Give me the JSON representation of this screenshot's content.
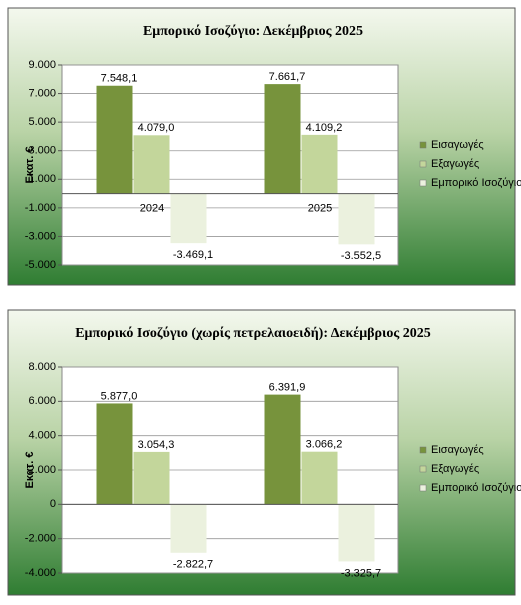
{
  "chart_data": [
    {
      "type": "bar",
      "title": "Εμπορικό Ισοζύγιο: Δεκέμβριος 2025",
      "y_label": "Εκατ. €",
      "categories": [
        "2024",
        "2025"
      ],
      "series": [
        {
          "name": "Εισαγωγές",
          "color": "#77933c",
          "values": [
            7548.1,
            7661.7
          ],
          "value_labels": [
            "7.548,1",
            "7.661,7"
          ]
        },
        {
          "name": "Εξαγωγές",
          "color": "#c3d69b",
          "values": [
            4079.0,
            4109.2
          ],
          "value_labels": [
            "4.079,0",
            "4.109,2"
          ]
        },
        {
          "name": "Εμπορικό Ισοζύγιο",
          "color": "#ebf1de",
          "values": [
            -3469.1,
            -3552.5
          ],
          "value_labels": [
            "-3.469,1",
            "-3.552,5"
          ]
        }
      ],
      "ylim": [
        -5000,
        9000
      ],
      "yticks": [
        {
          "value": 9000,
          "label": "9.000"
        },
        {
          "value": 7000,
          "label": "7.000"
        },
        {
          "value": 5000,
          "label": "5.000"
        },
        {
          "value": 3000,
          "label": "3.000"
        },
        {
          "value": 1000,
          "label": "1.000"
        },
        {
          "value": -1000,
          "label": "-1.000"
        },
        {
          "value": -3000,
          "label": "-3.000"
        },
        {
          "value": -5000,
          "label": "-5.000"
        }
      ],
      "grid": true,
      "legend": "right"
    },
    {
      "type": "bar",
      "title": "Εμπορικό Ισοζύγιο (χωρίς πετρελαιοειδή): Δεκέμβριος 2025",
      "y_label": "Εκατ. €",
      "categories": [
        null,
        null
      ],
      "series": [
        {
          "name": "Εισαγωγές",
          "color": "#77933c",
          "values": [
            5877.0,
            6391.9
          ],
          "value_labels": [
            "5.877,0",
            "6.391,9"
          ]
        },
        {
          "name": "Εξαγωγές",
          "color": "#c3d69b",
          "values": [
            3054.3,
            3066.2
          ],
          "value_labels": [
            "3.054,3",
            "3.066,2"
          ]
        },
        {
          "name": "Εμπορικό Ισοζύγιο",
          "color": "#ebf1de",
          "values": [
            -2822.7,
            -3325.7
          ],
          "value_labels": [
            "-2.822,7",
            "-3.325,7"
          ]
        }
      ],
      "ylim": [
        -4000,
        8000
      ],
      "yticks": [
        {
          "value": 8000,
          "label": "8.000"
        },
        {
          "value": 6000,
          "label": "6.000"
        },
        {
          "value": 4000,
          "label": "4.000"
        },
        {
          "value": 2000,
          "label": "2.000"
        },
        0,
        {
          "value": -2000,
          "label": "-2.000"
        },
        {
          "value": -4000,
          "label": "-4.000"
        }
      ],
      "grid": true,
      "legend": "right"
    }
  ]
}
